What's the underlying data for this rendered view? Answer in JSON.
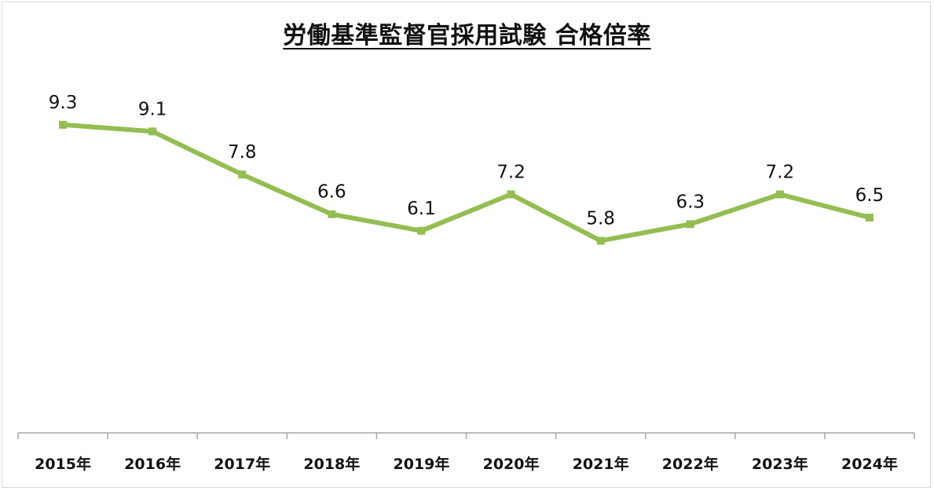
{
  "chart_data": {
    "type": "line",
    "title": "労働基準監督官採用試験 合格倍率",
    "categories": [
      "2015年",
      "2016年",
      "2017年",
      "2018年",
      "2019年",
      "2020年",
      "2021年",
      "2022年",
      "2023年",
      "2024年"
    ],
    "series": [
      {
        "name": "合格倍率",
        "values": [
          9.3,
          9.1,
          7.8,
          6.6,
          6.1,
          7.2,
          5.8,
          6.3,
          7.2,
          6.5
        ],
        "labels": [
          "9.3",
          "9.1",
          "7.8",
          "6.6",
          "6.1",
          "7.2",
          "5.8",
          "6.3",
          "7.2",
          "6.5"
        ],
        "color": "#94bd52"
      }
    ],
    "xlabel": "",
    "ylabel": "",
    "ylim": [
      0,
      12
    ],
    "grid": false,
    "legend": "none",
    "axis_color": "#a6a6a6",
    "text_color": "#111111"
  }
}
